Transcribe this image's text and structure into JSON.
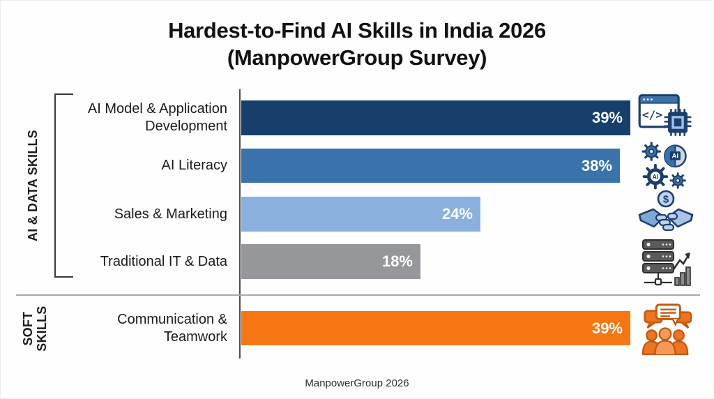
{
  "title": {
    "line1": "Hardest-to-Find AI Skills in India 2026",
    "line2": "(ManpowerGroup Survey)"
  },
  "left_rail": {
    "group1_label": "AI & DATA SKILLS",
    "group2_label": "SOFT SKILLS"
  },
  "footer": {
    "source_label": "ManpowerGroup 2026"
  },
  "chart_data": {
    "type": "bar",
    "orientation": "horizontal",
    "title": "Hardest-to-Find AI Skills in India 2026 (ManpowerGroup Survey)",
    "categories": [
      "AI Model & Application Development",
      "AI Literacy",
      "Sales & Marketing",
      "Traditional IT & Data",
      "Communication & Teamwork"
    ],
    "values": [
      39,
      38,
      24,
      18,
      39
    ],
    "value_labels": [
      "39%",
      "38%",
      "24%",
      "18%",
      "39%"
    ],
    "colors": [
      "#16406b",
      "#3a72ab",
      "#8ab1dd",
      "#96979a",
      "#f87612"
    ],
    "bar_groups": [
      "AI & DATA SKILLS",
      "AI & DATA SKILLS",
      "AI & DATA SKILLS",
      "AI & DATA SKILLS",
      "SOFT SKILLS"
    ],
    "icons": [
      "app-development-icon",
      "ai-gears-icon",
      "sales-handshake-icon",
      "it-data-servers-icon",
      "teamwork-chat-icon"
    ],
    "xlim": [
      0,
      41
    ],
    "grid": false,
    "legend": "none",
    "value_label_position": "inside-end",
    "source": "ManpowerGroup 2026"
  }
}
